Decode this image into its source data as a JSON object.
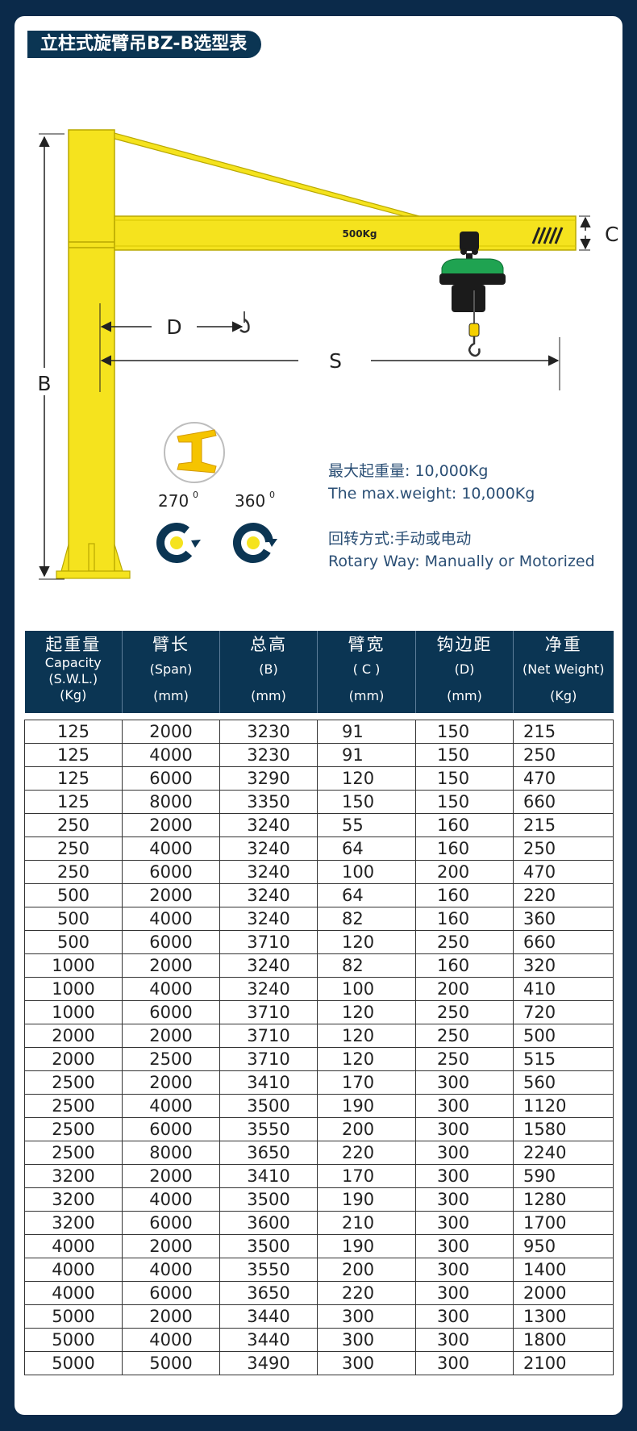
{
  "page_title": "立柱式旋臂吊BZ-B选型表",
  "diagram": {
    "beam_label": "500Kg",
    "dim_b": "B",
    "dim_c": "C",
    "dim_d": "D",
    "dim_s": "S",
    "rotation_270": "270",
    "rotation_360": "360",
    "degree_mark": "0"
  },
  "info": {
    "max_weight_zh": "最大起重量: 10,000Kg",
    "max_weight_en": "The max.weight: 10,000Kg",
    "rotary_zh": "回转方式:手动或电动",
    "rotary_en": "Rotary Way: Manually or Motorized"
  },
  "colors": {
    "background": "#0b2a4a",
    "header": "#0b3553",
    "crane_yellow": "#f5e31e",
    "hoist_green": "#1fa351",
    "info_text": "#2b4f75"
  },
  "table": {
    "headers": [
      {
        "zh": "起重量",
        "en": "Capacity (S.W.L.)",
        "unit": "(Kg)"
      },
      {
        "zh": "臂长",
        "en": "(Span)",
        "unit": "(mm)"
      },
      {
        "zh": "总高",
        "en": "(B)",
        "unit": "(mm)"
      },
      {
        "zh": "臂宽",
        "en": "( C )",
        "unit": "(mm)"
      },
      {
        "zh": "钩边距",
        "en": "(D)",
        "unit": "(mm)"
      },
      {
        "zh": "净重",
        "en": "(Net Weight)",
        "unit": "(Kg)"
      }
    ],
    "rows": [
      [
        "125",
        "2000",
        "3230",
        "91",
        "150",
        "215"
      ],
      [
        "125",
        "4000",
        "3230",
        "91",
        "150",
        "250"
      ],
      [
        "125",
        "6000",
        "3290",
        "120",
        "150",
        "470"
      ],
      [
        "125",
        "8000",
        "3350",
        "150",
        "150",
        "660"
      ],
      [
        "250",
        "2000",
        "3240",
        "55",
        "160",
        "215"
      ],
      [
        "250",
        "4000",
        "3240",
        "64",
        "160",
        "250"
      ],
      [
        "250",
        "6000",
        "3240",
        "100",
        "200",
        "470"
      ],
      [
        "500",
        "2000",
        "3240",
        "64",
        "160",
        "220"
      ],
      [
        "500",
        "4000",
        "3240",
        "82",
        "160",
        "360"
      ],
      [
        "500",
        "6000",
        "3710",
        "120",
        "250",
        "660"
      ],
      [
        "1000",
        "2000",
        "3240",
        "82",
        "160",
        "320"
      ],
      [
        "1000",
        "4000",
        "3240",
        "100",
        "200",
        "410"
      ],
      [
        "1000",
        "6000",
        "3710",
        "120",
        "250",
        "720"
      ],
      [
        "2000",
        "2000",
        "3710",
        "120",
        "250",
        "500"
      ],
      [
        "2000",
        "2500",
        "3710",
        "120",
        "250",
        "515"
      ],
      [
        "2500",
        "2000",
        "3410",
        "170",
        "300",
        "560"
      ],
      [
        "2500",
        "4000",
        "3500",
        "190",
        "300",
        "1120"
      ],
      [
        "2500",
        "6000",
        "3550",
        "200",
        "300",
        "1580"
      ],
      [
        "2500",
        "8000",
        "3650",
        "220",
        "300",
        "2240"
      ],
      [
        "3200",
        "2000",
        "3410",
        "170",
        "300",
        "590"
      ],
      [
        "3200",
        "4000",
        "3500",
        "190",
        "300",
        "1280"
      ],
      [
        "3200",
        "6000",
        "3600",
        "210",
        "300",
        "1700"
      ],
      [
        "4000",
        "2000",
        "3500",
        "190",
        "300",
        "950"
      ],
      [
        "4000",
        "4000",
        "3550",
        "200",
        "300",
        "1400"
      ],
      [
        "4000",
        "6000",
        "3650",
        "220",
        "300",
        "2000"
      ],
      [
        "5000",
        "2000",
        "3440",
        "300",
        "300",
        "1300"
      ],
      [
        "5000",
        "4000",
        "3440",
        "300",
        "300",
        "1800"
      ],
      [
        "5000",
        "5000",
        "3490",
        "300",
        "300",
        "2100"
      ]
    ]
  }
}
